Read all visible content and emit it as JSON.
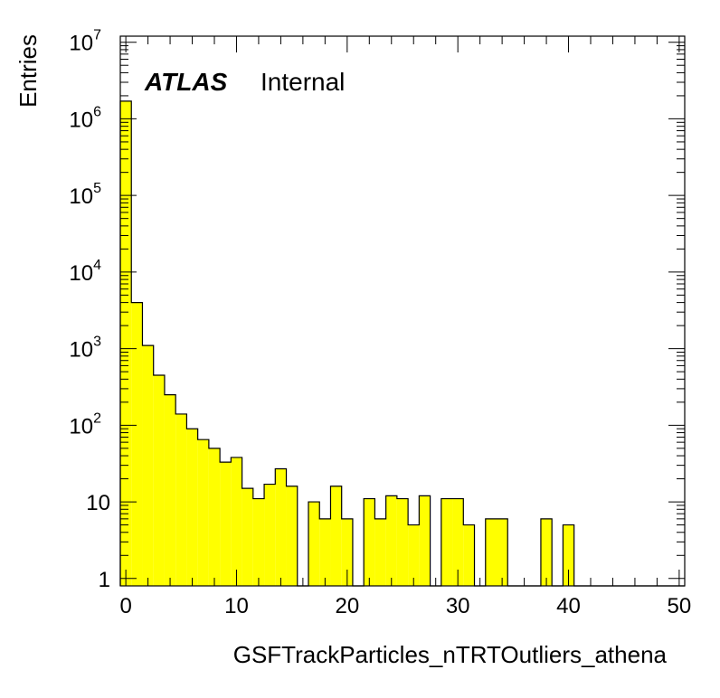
{
  "chart_data": {
    "type": "bar",
    "style": "histogram",
    "xlabel": "GSFTrackParticles_nTRTOutliers_athena",
    "ylabel": "Entries",
    "label_bold": "ATLAS",
    "label_normal": "Internal",
    "x_range": [
      -0.5,
      50.5
    ],
    "bin_width": 1,
    "y_scale": "log",
    "ylim": [
      0.8,
      12000000
    ],
    "fill_color": "#ffff00",
    "edge_color": "#000000",
    "x_ticks": [
      "0",
      "10",
      "20",
      "30",
      "40",
      "50"
    ],
    "y_ticks": [
      {
        "base": "1",
        "exp": ""
      },
      {
        "base": "10",
        "exp": ""
      },
      {
        "base": "10",
        "exp": "2"
      },
      {
        "base": "10",
        "exp": "3"
      },
      {
        "base": "10",
        "exp": "4"
      },
      {
        "base": "10",
        "exp": "5"
      },
      {
        "base": "10",
        "exp": "6"
      },
      {
        "base": "10",
        "exp": "7"
      }
    ],
    "bin_centers": [
      0,
      1,
      2,
      3,
      4,
      5,
      6,
      7,
      8,
      9,
      10,
      11,
      12,
      13,
      14,
      15,
      16,
      17,
      18,
      19,
      20,
      21,
      22,
      23,
      24,
      25,
      26,
      27,
      28,
      29,
      30,
      31,
      32,
      33,
      34,
      35,
      36,
      37,
      38,
      39,
      40,
      41,
      42,
      43,
      44,
      45,
      46,
      47,
      48,
      49,
      50
    ],
    "values": [
      1700000,
      4000,
      1100,
      450,
      250,
      140,
      90,
      65,
      50,
      33,
      38,
      15,
      11,
      17,
      27,
      16,
      0,
      10,
      6,
      16,
      6,
      0,
      11,
      6,
      12,
      11,
      5,
      12,
      0,
      11,
      11,
      5,
      0,
      6,
      6,
      0,
      0,
      0,
      6,
      0,
      5,
      0,
      0,
      0,
      0,
      0,
      0,
      0,
      0,
      0,
      0
    ]
  }
}
